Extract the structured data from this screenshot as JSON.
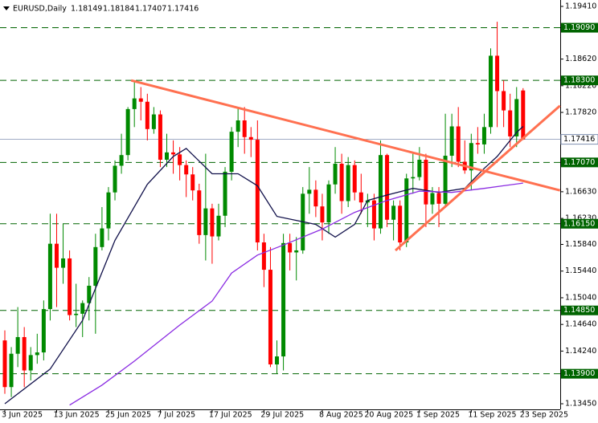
{
  "chart_data": {
    "type": "candlestick",
    "title": "EURUSD,Daily",
    "categories": [
      "3 Jun 2025",
      null,
      null,
      null,
      null,
      null,
      null,
      null,
      "13 Jun 2025",
      null,
      null,
      null,
      null,
      null,
      null,
      null,
      "25 Jun 2025",
      null,
      null,
      null,
      null,
      null,
      null,
      null,
      "7 Jul 2025",
      null,
      null,
      null,
      null,
      null,
      null,
      null,
      "17 Jul 2025",
      null,
      null,
      null,
      null,
      null,
      null,
      null,
      "29 Jul 2025",
      null,
      null,
      null,
      null,
      null,
      null,
      null,
      null,
      "8 Aug 2025",
      null,
      null,
      null,
      null,
      null,
      null,
      "20 Aug 2025",
      null,
      null,
      null,
      null,
      null,
      null,
      null,
      "1 Sep 2025",
      null,
      null,
      null,
      null,
      null,
      null,
      null,
      "11 Sep 2025",
      null,
      null,
      null,
      null,
      null,
      null,
      null,
      "23 Sep 2025"
    ],
    "open": [
      1.144,
      1.137,
      1.142,
      1.1445,
      1.1395,
      1.1418,
      1.1422,
      1.1487,
      1.1585,
      1.1549,
      1.1563,
      1.1478,
      1.148,
      1.1496,
      1.1522,
      1.158,
      1.1608,
      1.1662,
      1.1702,
      1.1718,
      1.1787,
      1.1803,
      1.1798,
      1.1757,
      1.1779,
      1.1711,
      1.1722,
      1.1719,
      1.1703,
      1.1689,
      1.1665,
      1.1598,
      1.1638,
      1.1596,
      1.1627,
      1.1693,
      1.1753,
      1.177,
      1.1745,
      1.1741,
      1.1587,
      1.1546,
      1.1404,
      1.1416,
      1.1586,
      1.1572,
      1.1575,
      1.166,
      1.1666,
      1.1641,
      1.1617,
      1.1674,
      1.1705,
      1.1649,
      1.1703,
      1.1662,
      1.1647,
      1.165,
      1.1608,
      1.1718,
      1.1621,
      1.1642,
      1.1587,
      1.1683,
      1.1685,
      1.1711,
      1.1644,
      1.1661,
      1.1645,
      1.1717,
      1.1761,
      1.1708,
      1.1695,
      1.1736,
      1.1734,
      1.176,
      1.1867,
      1.1814,
      1.1785,
      1.1746,
      1.18149
    ],
    "high": [
      1.1455,
      1.143,
      1.149,
      1.146,
      1.143,
      1.145,
      1.15,
      1.163,
      1.163,
      1.1615,
      1.1575,
      1.1525,
      1.15,
      1.1535,
      1.16,
      1.164,
      1.167,
      1.171,
      1.175,
      1.179,
      1.183,
      1.182,
      1.181,
      1.179,
      1.1785,
      1.175,
      1.174,
      1.173,
      1.171,
      1.17,
      1.1675,
      1.172,
      1.1645,
      1.1645,
      1.17,
      1.176,
      1.179,
      1.179,
      1.176,
      1.177,
      1.16,
      1.158,
      1.144,
      1.16,
      1.16,
      1.1595,
      1.167,
      1.17,
      1.168,
      1.166,
      1.168,
      1.173,
      1.172,
      1.1715,
      1.171,
      1.169,
      1.166,
      1.166,
      1.174,
      1.172,
      1.165,
      1.165,
      1.169,
      1.172,
      1.173,
      1.172,
      1.167,
      1.167,
      1.178,
      1.178,
      1.179,
      1.174,
      1.175,
      1.176,
      1.178,
      1.1878,
      1.1918,
      1.183,
      1.181,
      1.182,
      1.18184
    ],
    "low": [
      1.136,
      1.1355,
      1.14,
      1.137,
      1.138,
      1.1405,
      1.141,
      1.147,
      1.149,
      1.1525,
      1.147,
      1.146,
      1.1445,
      1.147,
      1.145,
      1.1575,
      1.159,
      1.165,
      1.169,
      1.171,
      1.176,
      1.177,
      1.174,
      1.175,
      1.17,
      1.17,
      1.169,
      1.168,
      1.1655,
      1.165,
      1.1585,
      1.156,
      1.1555,
      1.159,
      1.161,
      1.168,
      1.173,
      1.172,
      1.1715,
      1.1575,
      1.152,
      1.14,
      1.139,
      1.1395,
      1.1545,
      1.153,
      1.157,
      1.163,
      1.1625,
      1.159,
      1.16,
      1.166,
      1.163,
      1.164,
      1.165,
      1.163,
      1.161,
      1.159,
      1.16,
      1.161,
      1.159,
      1.1575,
      1.158,
      1.166,
      1.168,
      1.161,
      1.163,
      1.161,
      1.164,
      1.17,
      1.17,
      1.169,
      1.1665,
      1.172,
      1.172,
      1.175,
      1.176,
      1.176,
      1.173,
      1.173,
      1.17407
    ],
    "close": [
      1.137,
      1.142,
      1.1445,
      1.1395,
      1.1418,
      1.1422,
      1.1487,
      1.1585,
      1.1549,
      1.1563,
      1.1478,
      1.148,
      1.1496,
      1.1522,
      1.158,
      1.1608,
      1.1662,
      1.1702,
      1.1718,
      1.1787,
      1.1803,
      1.1798,
      1.1757,
      1.1779,
      1.1711,
      1.1722,
      1.1719,
      1.1703,
      1.1689,
      1.1665,
      1.1598,
      1.1638,
      1.1596,
      1.1627,
      1.1693,
      1.1753,
      1.177,
      1.1745,
      1.1741,
      1.1587,
      1.1546,
      1.1404,
      1.1416,
      1.1586,
      1.1572,
      1.1575,
      1.166,
      1.1666,
      1.1641,
      1.1617,
      1.1674,
      1.1705,
      1.1649,
      1.1703,
      1.1662,
      1.1647,
      1.165,
      1.1608,
      1.1718,
      1.1621,
      1.1642,
      1.1587,
      1.1683,
      1.1685,
      1.1711,
      1.1644,
      1.1661,
      1.1645,
      1.1717,
      1.1761,
      1.1708,
      1.1695,
      1.1736,
      1.1734,
      1.176,
      1.1867,
      1.1814,
      1.1785,
      1.1746,
      1.1802,
      1.17416
    ],
    "up_color": "#008a00",
    "down_color": "#ff0000",
    "lines": [
      {
        "color": "#10104a",
        "x": [
          0,
          7,
          12,
          17,
          22,
          26,
          28,
          32,
          36,
          39,
          42,
          45,
          48,
          51,
          54,
          56,
          59,
          63,
          67,
          71,
          74,
          76,
          79,
          80
        ],
        "values": [
          1.1345,
          1.1397,
          1.147,
          1.159,
          1.1674,
          1.1716,
          1.1728,
          1.169,
          1.169,
          1.1672,
          1.1626,
          1.162,
          1.1614,
          1.1595,
          1.1614,
          1.165,
          1.1658,
          1.1668,
          1.1662,
          1.1668,
          1.1698,
          1.1716,
          1.1752,
          1.1761
        ]
      },
      {
        "color": "#8a2be2",
        "x": [
          10,
          15,
          20,
          27,
          32,
          35,
          39,
          43,
          49,
          54,
          59,
          64,
          69,
          74,
          77,
          80
        ],
        "values": [
          1.1343,
          1.1373,
          1.1409,
          1.1463,
          1.1499,
          1.1541,
          1.1568,
          1.1583,
          1.1607,
          1.1632,
          1.165,
          1.1664,
          1.1662,
          1.1668,
          1.1672,
          1.1676
        ]
      }
    ],
    "trendlines": [
      {
        "color": "#ff7050",
        "x": [
          19.5,
          85.7
        ],
        "values": [
          1.183,
          1.1665
        ]
      },
      {
        "color": "#ff7050",
        "x": [
          60.3,
          85.7
        ],
        "values": [
          1.1575,
          1.1792
        ]
      }
    ],
    "levels": [
      {
        "value": 1.1909,
        "label": "1.19090"
      },
      {
        "value": 1.183,
        "label": "1.18300"
      },
      {
        "value": 1.1707,
        "label": "1.17070"
      },
      {
        "value": 1.1615,
        "label": "1.16150"
      },
      {
        "value": 1.1485,
        "label": "1.14850"
      },
      {
        "value": 1.139,
        "label": "1.13900"
      }
    ],
    "level_color": "#006400",
    "ylim": [
      1.13366,
      1.19506
    ],
    "yticks": [
      {
        "value": 1.1941,
        "label": "1.19410"
      },
      {
        "value": 1.1862,
        "label": "1.18620"
      },
      {
        "value": 1.1822,
        "label": "1.18220"
      },
      {
        "value": 1.1782,
        "label": "1.17820"
      },
      {
        "value": 1.1663,
        "label": "1.16630"
      },
      {
        "value": 1.1623,
        "label": "1.16230"
      },
      {
        "value": 1.1584,
        "label": "1.15840"
      },
      {
        "value": 1.1544,
        "label": "1.15440"
      },
      {
        "value": 1.1504,
        "label": "1.15040"
      },
      {
        "value": 1.1464,
        "label": "1.14640"
      },
      {
        "value": 1.1424,
        "label": "1.14240"
      },
      {
        "value": 1.1345,
        "label": "1.13450"
      }
    ]
  }
}
